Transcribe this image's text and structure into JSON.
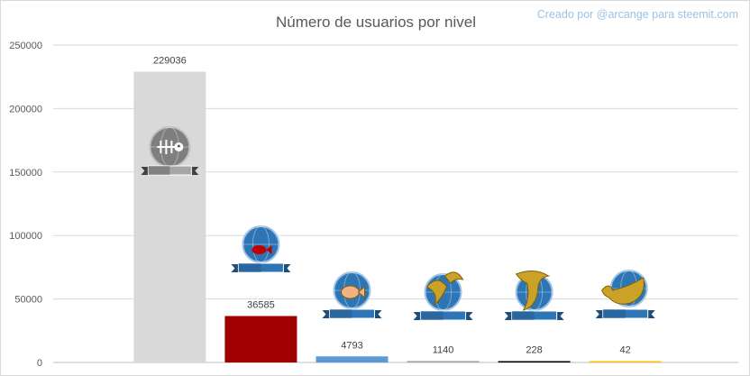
{
  "credit_text": "Creado por @arcange para steemit.com",
  "chart_data": {
    "type": "bar",
    "title": "Número de usuarios por nivel",
    "xlabel": "",
    "ylabel": "",
    "ylim": [
      0,
      250000
    ],
    "yticks": [
      0,
      50000,
      100000,
      150000,
      200000,
      250000
    ],
    "grid": true,
    "legend": "none",
    "bars": [
      {
        "value": 229036,
        "color": "#d9d9d9",
        "icon": "dead-fish-icon"
      },
      {
        "value": 36585,
        "color": "#a00000",
        "icon": "redfish-icon"
      },
      {
        "value": 4793,
        "color": "#5b9bd5",
        "icon": "minnow-icon"
      },
      {
        "value": 1140,
        "color": "#a5a5a5",
        "icon": "dolphin-icon"
      },
      {
        "value": 228,
        "color": "#000000",
        "icon": "orca-icon"
      },
      {
        "value": 42,
        "color": "#ffc000",
        "icon": "whale-icon"
      }
    ]
  }
}
